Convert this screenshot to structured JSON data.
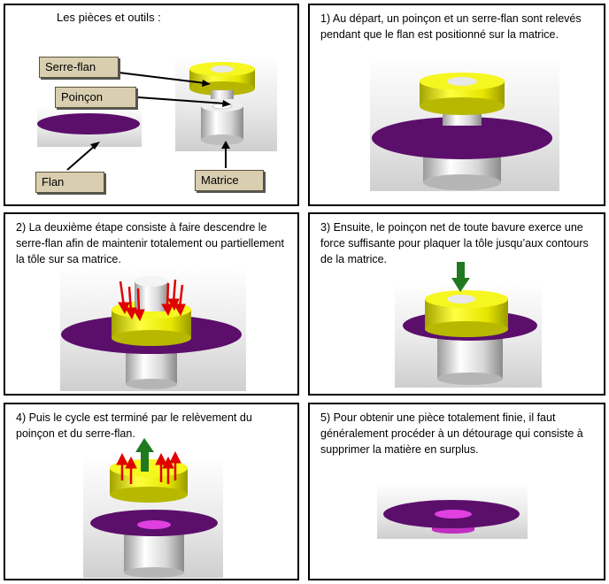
{
  "panels": {
    "p0": {
      "title": "Les pièces et outils :"
    },
    "p1": {
      "text": "1) Au départ, un poinçon et un serre-flan sont relevés pendant que le flan est positionné sur la matrice."
    },
    "p2": {
      "text": "2) La deuxième étape consiste à faire descendre le serre-flan afin de maintenir totalement ou partiellement la tôle sur sa matrice."
    },
    "p3": {
      "text": "3) Ensuite, le poinçon net de toute bavure exerce une force suffisante pour plaquer la tôle jusqu’aux contours de la matrice."
    },
    "p4": {
      "text": "4) Puis le cycle est terminé par le relèvement  du poinçon et du serre-flan."
    },
    "p5": {
      "text": "5) Pour obtenir une pièce totalement finie, il faut généralement procéder à un détourage qui consiste à supprimer la matière en surplus."
    }
  },
  "labels": {
    "serre_flan": "Serre-flan",
    "poincon": "Poinçon",
    "flan": "Flan",
    "matrice": "Matrice"
  },
  "colors": {
    "sheet": "#5b0f6b",
    "holder": "#f0f000",
    "die": "#f2f2f2",
    "arrow_down": "#e00000",
    "arrow_up": "#1f7a1f",
    "part": "#e040e0"
  }
}
